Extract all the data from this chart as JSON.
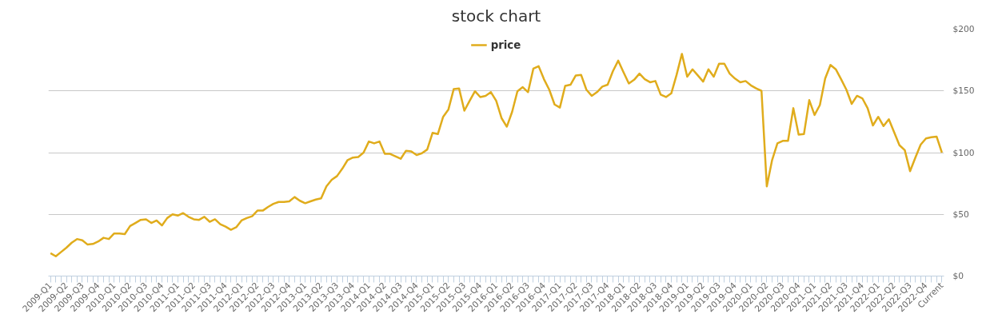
{
  "chart_data": {
    "type": "line",
    "title": "stock chart",
    "legend": "top",
    "grid": "y",
    "ylim": [
      0,
      200
    ],
    "yticks": [
      {
        "value": 0,
        "label": "$0"
      },
      {
        "value": 50,
        "label": "$50"
      },
      {
        "value": 100,
        "label": "$100"
      },
      {
        "value": 150,
        "label": "$150"
      },
      {
        "value": 200,
        "label": "$200"
      }
    ],
    "categories": [
      "2009-Q1",
      null,
      null,
      "2009-Q2",
      null,
      null,
      "2009-Q3",
      null,
      null,
      "2009-Q4",
      null,
      null,
      "2010-Q1",
      null,
      null,
      "2010-Q2",
      null,
      null,
      "2010-Q3",
      null,
      null,
      "2010-Q4",
      null,
      null,
      "2011-Q1",
      null,
      null,
      "2011-Q2",
      null,
      null,
      "2011-Q3",
      null,
      null,
      "2011-Q4",
      null,
      null,
      "2012-Q1",
      null,
      null,
      "2012-Q2",
      null,
      null,
      "2012-Q3",
      null,
      null,
      "2012-Q4",
      null,
      null,
      "2013-Q1",
      null,
      null,
      "2013-Q2",
      null,
      null,
      "2013-Q3",
      null,
      null,
      "2013-Q4",
      null,
      null,
      "2014-Q1",
      null,
      null,
      "2014-Q2",
      null,
      null,
      "2014-Q3",
      null,
      null,
      "2014-Q4",
      null,
      null,
      "2015-Q1",
      null,
      null,
      "2015-Q2",
      null,
      null,
      "2015-Q3",
      null,
      null,
      "2015-Q4",
      null,
      null,
      "2016-Q1",
      null,
      null,
      "2016-Q2",
      null,
      null,
      "2016-Q3",
      null,
      null,
      "2016-Q4",
      null,
      null,
      "2017-Q1",
      null,
      null,
      "2017-Q2",
      null,
      null,
      "2017-Q3",
      null,
      null,
      "2017-Q4",
      null,
      null,
      "2018-Q1",
      null,
      null,
      "2018-Q2",
      null,
      null,
      "2018-Q3",
      null,
      null,
      "2018-Q4",
      null,
      null,
      "2019-Q1",
      null,
      null,
      "2019-Q2",
      null,
      null,
      "2019-Q3",
      null,
      null,
      "2019-Q4",
      null,
      null,
      "2020-Q1",
      null,
      null,
      "2020-Q2",
      null,
      null,
      "2020-Q3",
      null,
      null,
      "2020-Q4",
      null,
      null,
      "2021-Q1",
      null,
      null,
      "2021-Q2",
      null,
      null,
      "2021-Q3",
      null,
      null,
      "2021-Q4",
      null,
      null,
      "2022-Q1",
      null,
      null,
      "2022-Q2",
      null,
      null,
      "2022-Q3",
      null,
      null,
      "2022-Q4",
      null,
      null,
      "Current"
    ],
    "series": [
      {
        "name": "price",
        "color": "#e0ac1c",
        "values": [
          18.5,
          16,
          19.5,
          23,
          27,
          30,
          29,
          25.5,
          26,
          28,
          31,
          30,
          34.5,
          34.5,
          34,
          40.5,
          43,
          45.5,
          46,
          43,
          45,
          41,
          47,
          50,
          49,
          51,
          48,
          46,
          45.5,
          48,
          44,
          46,
          42,
          40,
          37.5,
          39.5,
          45,
          47,
          48.5,
          53,
          53,
          56,
          58.5,
          60,
          60,
          60.5,
          64,
          61,
          59,
          60.5,
          62,
          63,
          72.7,
          78,
          81,
          87,
          94,
          96,
          96.5,
          100,
          109,
          107.5,
          109,
          99,
          99,
          97,
          95,
          101.5,
          101,
          98,
          99.5,
          102.5,
          116,
          115,
          129,
          135,
          151.5,
          152,
          134,
          142,
          149.7,
          145,
          146,
          149,
          142,
          128,
          121,
          133,
          149.7,
          153,
          149,
          168,
          170,
          159.5,
          151,
          139,
          136.5,
          154,
          155,
          162.5,
          163,
          151,
          146,
          149,
          153.5,
          155,
          166,
          174.5,
          165,
          156,
          159,
          164,
          159.5,
          157,
          158,
          147,
          145,
          148,
          163,
          180,
          161.5,
          167.5,
          162.5,
          157.5,
          167.5,
          161.5,
          172,
          172,
          164,
          160,
          157,
          158,
          154.5,
          152,
          150,
          72.7,
          94,
          107.5,
          109.5,
          109.5,
          136,
          114.5,
          115,
          142.5,
          130.5,
          138.5,
          160,
          171,
          167.5,
          159.5,
          151,
          139.5,
          146,
          144,
          136,
          122,
          129,
          121.5,
          127,
          116.5,
          106,
          102,
          85,
          96,
          106.5,
          111.5,
          112.5,
          113,
          100
        ]
      }
    ]
  }
}
